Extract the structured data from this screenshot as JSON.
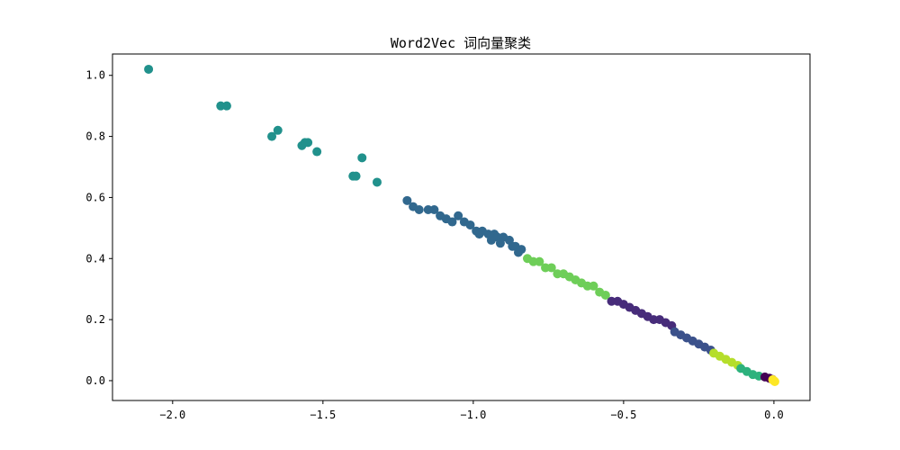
{
  "chart_data": {
    "type": "scatter",
    "title": "Word2Vec 词向量聚类",
    "xlabel": "",
    "ylabel": "",
    "xlim": [
      -2.2,
      0.12
    ],
    "ylim": [
      -0.065,
      1.07
    ],
    "xticks": [
      -2.0,
      -1.5,
      -1.0,
      -0.5,
      0.0
    ],
    "xtick_labels": [
      "−2.0",
      "−1.5",
      "−1.0",
      "−0.5",
      "0.0"
    ],
    "yticks": [
      0.0,
      0.2,
      0.4,
      0.6,
      0.8,
      1.0
    ],
    "ytick_labels": [
      "0.0",
      "0.2",
      "0.4",
      "0.6",
      "0.8",
      "1.0"
    ],
    "grid": false,
    "legend": "none",
    "series": [
      {
        "color": "#21918c",
        "points": [
          [
            -2.08,
            1.02
          ],
          [
            -1.84,
            0.9
          ],
          [
            -1.82,
            0.9
          ],
          [
            -1.67,
            0.8
          ],
          [
            -1.65,
            0.82
          ],
          [
            -1.57,
            0.77
          ],
          [
            -1.56,
            0.78
          ],
          [
            -1.55,
            0.78
          ],
          [
            -1.52,
            0.75
          ],
          [
            -1.4,
            0.67
          ],
          [
            -1.39,
            0.67
          ],
          [
            -1.37,
            0.73
          ],
          [
            -1.32,
            0.65
          ]
        ]
      },
      {
        "color": "#31688e",
        "points": [
          [
            -1.22,
            0.59
          ],
          [
            -1.2,
            0.57
          ],
          [
            -1.18,
            0.56
          ],
          [
            -1.15,
            0.56
          ],
          [
            -1.13,
            0.56
          ],
          [
            -1.11,
            0.54
          ],
          [
            -1.09,
            0.53
          ],
          [
            -1.07,
            0.52
          ],
          [
            -1.05,
            0.54
          ],
          [
            -1.03,
            0.52
          ],
          [
            -1.01,
            0.51
          ],
          [
            -0.99,
            0.49
          ],
          [
            -0.97,
            0.49
          ],
          [
            -0.95,
            0.48
          ],
          [
            -0.93,
            0.48
          ],
          [
            -0.92,
            0.47
          ],
          [
            -0.9,
            0.47
          ],
          [
            -0.88,
            0.46
          ],
          [
            -0.86,
            0.44
          ],
          [
            -0.84,
            0.43
          ],
          [
            -0.98,
            0.48
          ],
          [
            -0.94,
            0.46
          ],
          [
            -0.91,
            0.45
          ],
          [
            -0.87,
            0.44
          ],
          [
            -0.85,
            0.42
          ]
        ]
      },
      {
        "color": "#6ece58",
        "points": [
          [
            -0.82,
            0.4
          ],
          [
            -0.8,
            0.39
          ],
          [
            -0.78,
            0.39
          ],
          [
            -0.76,
            0.37
          ],
          [
            -0.74,
            0.37
          ],
          [
            -0.72,
            0.35
          ],
          [
            -0.7,
            0.35
          ],
          [
            -0.68,
            0.34
          ],
          [
            -0.66,
            0.33
          ],
          [
            -0.64,
            0.32
          ],
          [
            -0.62,
            0.31
          ],
          [
            -0.6,
            0.31
          ],
          [
            -0.58,
            0.29
          ],
          [
            -0.56,
            0.28
          ]
        ]
      },
      {
        "color": "#472c7a",
        "points": [
          [
            -0.54,
            0.26
          ],
          [
            -0.52,
            0.26
          ],
          [
            -0.5,
            0.25
          ],
          [
            -0.48,
            0.24
          ],
          [
            -0.46,
            0.23
          ],
          [
            -0.44,
            0.22
          ],
          [
            -0.42,
            0.21
          ],
          [
            -0.4,
            0.2
          ],
          [
            -0.38,
            0.2
          ],
          [
            -0.36,
            0.19
          ],
          [
            -0.34,
            0.18
          ]
        ]
      },
      {
        "color": "#3b518b",
        "points": [
          [
            -0.33,
            0.16
          ],
          [
            -0.31,
            0.15
          ],
          [
            -0.29,
            0.14
          ],
          [
            -0.27,
            0.13
          ],
          [
            -0.25,
            0.12
          ],
          [
            -0.23,
            0.11
          ],
          [
            -0.21,
            0.1
          ]
        ]
      },
      {
        "color": "#b5de2b",
        "points": [
          [
            -0.2,
            0.09
          ],
          [
            -0.18,
            0.08
          ],
          [
            -0.16,
            0.07
          ],
          [
            -0.14,
            0.06
          ],
          [
            -0.12,
            0.05
          ]
        ]
      },
      {
        "color": "#2db27d",
        "points": [
          [
            -0.11,
            0.04
          ],
          [
            -0.09,
            0.03
          ],
          [
            -0.07,
            0.02
          ],
          [
            -0.05,
            0.015
          ]
        ]
      },
      {
        "color": "#440154",
        "points": [
          [
            -0.03,
            0.012
          ],
          [
            -0.015,
            0.008
          ],
          [
            -0.005,
            0.004
          ]
        ]
      },
      {
        "color": "#fde725",
        "points": [
          [
            -0.004,
            0.003
          ],
          [
            0.0,
            0.0
          ],
          [
            0.003,
            -0.003
          ]
        ]
      }
    ]
  }
}
